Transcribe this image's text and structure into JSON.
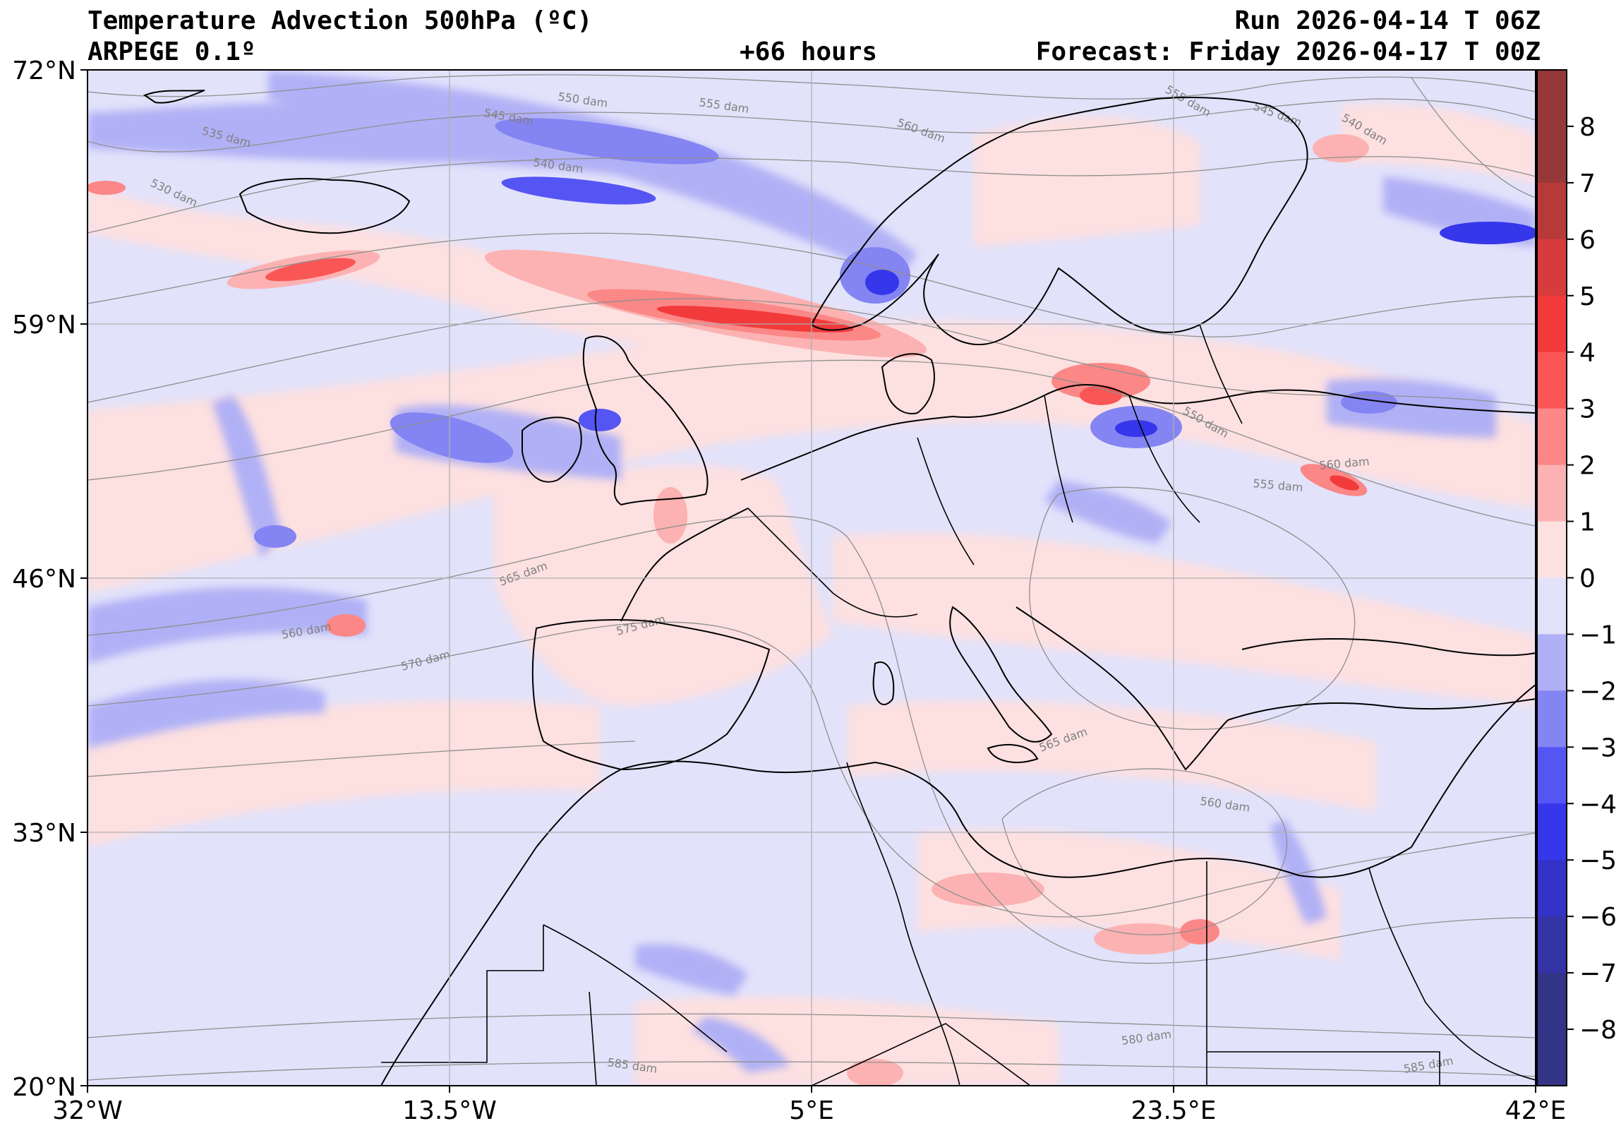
{
  "header": {
    "title": "Temperature Advection  500hPa (ºC)",
    "model": "ARPEGE 0.1º",
    "lead": "+66 hours",
    "run": "Run 2026-04-14 T 06Z",
    "forecast": "Forecast: Friday 2026-04-17 T 00Z"
  },
  "axes": {
    "lat_labels": [
      "72°N",
      "59°N",
      "46°N",
      "33°N",
      "20°N"
    ],
    "lon_labels": [
      "32°W",
      "13.5°W",
      "5°E",
      "23.5°E",
      "42°E"
    ]
  },
  "colorbar": {
    "ticks": [
      "8",
      "7",
      "6",
      "5",
      "4",
      "3",
      "2",
      "1",
      "0",
      "−1",
      "−2",
      "−3",
      "−4",
      "−5",
      "−6",
      "−7",
      "−8"
    ],
    "colors": [
      "#963837",
      "#b73a3a",
      "#d83b3b",
      "#f23a3a",
      "#fa5656",
      "#fb8787",
      "#fcb2b2",
      "#fde0e0",
      "#e2e2fb",
      "#b0b0f6",
      "#8484f3",
      "#5555f4",
      "#3636ea",
      "#3333c8",
      "#3434a7",
      "#333388"
    ]
  },
  "contour_labels": [
    "535 dam",
    "530 dam",
    "545 dam",
    "550 dam",
    "555 dam",
    "560 dam",
    "540 dam",
    "555 dam",
    "545 dam",
    "540 dam",
    "550 dam",
    "555 dam",
    "560 dam",
    "565 dam",
    "575 dam",
    "560 dam",
    "570 dam",
    "565 dam",
    "560 dam",
    "580 dam",
    "585 dam",
    "585 dam"
  ],
  "palette": {
    "background": "#e2e2fb",
    "warm": "#fde0e0",
    "cool": "#b0b0f6",
    "coast": "#000000",
    "grid": "#b0b0b0",
    "contour": "#909090"
  }
}
